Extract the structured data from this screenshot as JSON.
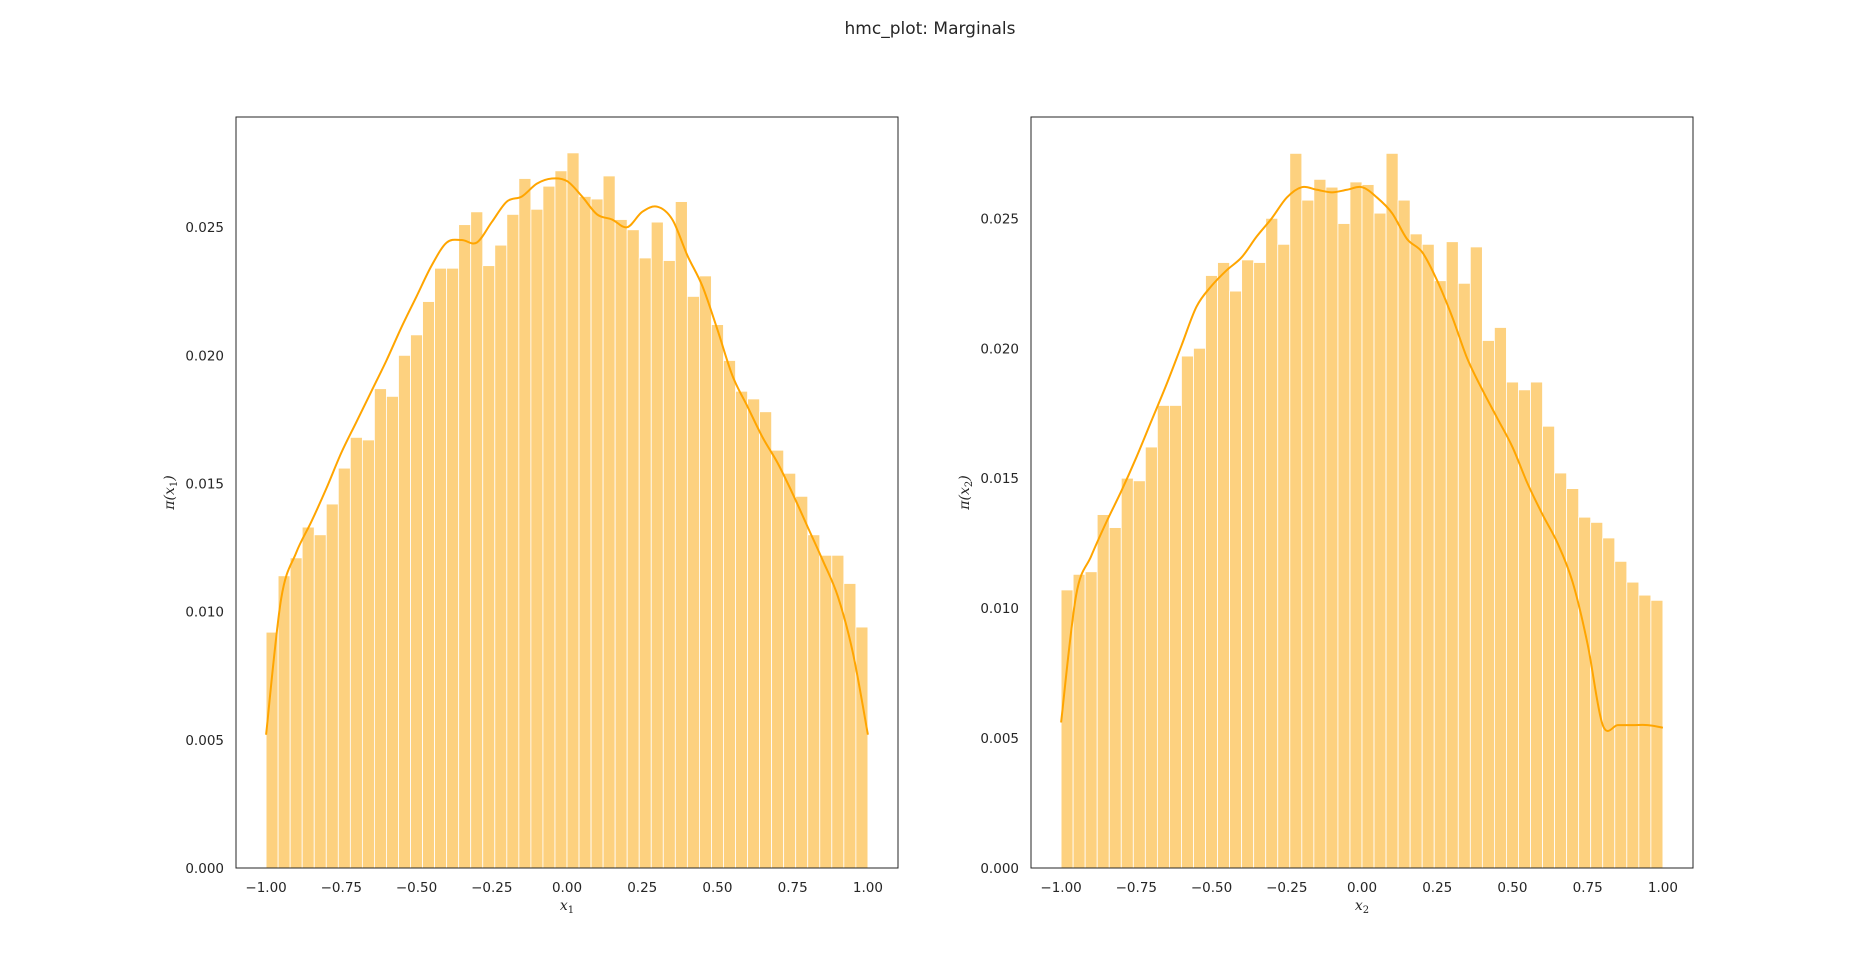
{
  "figure": {
    "title": "hmc_plot: Marginals",
    "bar_color": "#fdd17f",
    "bar_edge_color": "#ffffff",
    "kde_color": "#ffa500",
    "frame_color": "#262626"
  },
  "chart_data": [
    {
      "type": "bar",
      "panel": "left",
      "xlabel": "x",
      "xlabel_sub": "1",
      "ylabel_func": "π(x",
      "ylabel_sub": "1",
      "ylabel_close": ")",
      "xlim": [
        -1.1,
        1.1
      ],
      "ylim": [
        0,
        0.0293
      ],
      "xticks": [
        -1.0,
        -0.75,
        -0.5,
        -0.25,
        0.0,
        0.25,
        0.5,
        0.75,
        1.0
      ],
      "xtick_labels": [
        "−1.00",
        "−0.75",
        "−0.50",
        "−0.25",
        "0.00",
        "0.25",
        "0.50",
        "0.75",
        "1.00"
      ],
      "yticks": [
        0.0,
        0.005,
        0.01,
        0.015,
        0.02,
        0.025
      ],
      "ytick_labels": [
        "0.000",
        "0.005",
        "0.010",
        "0.015",
        "0.020",
        "0.025"
      ],
      "bin_range": [
        -1.0,
        1.0
      ],
      "values": [
        0.0092,
        0.0114,
        0.0121,
        0.0133,
        0.013,
        0.0142,
        0.0156,
        0.0168,
        0.0167,
        0.0187,
        0.0184,
        0.02,
        0.0208,
        0.0221,
        0.0234,
        0.0234,
        0.0251,
        0.0256,
        0.0235,
        0.0243,
        0.0255,
        0.0269,
        0.0257,
        0.0266,
        0.0272,
        0.0279,
        0.0262,
        0.0261,
        0.027,
        0.0253,
        0.0249,
        0.0238,
        0.0252,
        0.0237,
        0.026,
        0.0223,
        0.0231,
        0.0212,
        0.0198,
        0.0186,
        0.0183,
        0.0178,
        0.0163,
        0.0154,
        0.0145,
        0.013,
        0.0122,
        0.0122,
        0.0111,
        0.0094
      ],
      "kde": {
        "x": [
          -1.0,
          -0.95,
          -0.9,
          -0.85,
          -0.8,
          -0.75,
          -0.7,
          -0.65,
          -0.6,
          -0.55,
          -0.5,
          -0.45,
          -0.4,
          -0.35,
          -0.3,
          -0.25,
          -0.2,
          -0.15,
          -0.1,
          -0.05,
          0.0,
          0.05,
          0.1,
          0.15,
          0.2,
          0.25,
          0.3,
          0.35,
          0.4,
          0.45,
          0.5,
          0.55,
          0.6,
          0.65,
          0.7,
          0.75,
          0.8,
          0.85,
          0.9,
          0.95,
          1.0
        ],
        "y": [
          0.0052,
          0.0105,
          0.0123,
          0.0135,
          0.0148,
          0.0162,
          0.0174,
          0.0186,
          0.0198,
          0.0211,
          0.0223,
          0.0235,
          0.0244,
          0.0245,
          0.0244,
          0.0252,
          0.026,
          0.0262,
          0.0267,
          0.0269,
          0.0268,
          0.0262,
          0.0255,
          0.0253,
          0.025,
          0.0256,
          0.0258,
          0.0253,
          0.0239,
          0.0227,
          0.021,
          0.0192,
          0.018,
          0.0168,
          0.0158,
          0.0146,
          0.0133,
          0.012,
          0.0106,
          0.0084,
          0.0052
        ]
      }
    },
    {
      "type": "bar",
      "panel": "right",
      "xlabel": "x",
      "xlabel_sub": "2",
      "ylabel_func": "π(x",
      "ylabel_sub": "2",
      "ylabel_close": ")",
      "xlim": [
        -1.1,
        1.1
      ],
      "ylim": [
        0,
        0.0289
      ],
      "xticks": [
        -1.0,
        -0.75,
        -0.5,
        -0.25,
        0.0,
        0.25,
        0.5,
        0.75,
        1.0
      ],
      "xtick_labels": [
        "−1.00",
        "−0.75",
        "−0.50",
        "−0.25",
        "0.00",
        "0.25",
        "0.50",
        "0.75",
        "1.00"
      ],
      "yticks": [
        0.0,
        0.005,
        0.01,
        0.015,
        0.02,
        0.025
      ],
      "ytick_labels": [
        "0.000",
        "0.005",
        "0.010",
        "0.015",
        "0.020",
        "0.025"
      ],
      "bin_range": [
        -1.0,
        1.0
      ],
      "values": [
        0.0107,
        0.0113,
        0.0114,
        0.0136,
        0.0131,
        0.015,
        0.0149,
        0.0162,
        0.0178,
        0.0178,
        0.0197,
        0.02,
        0.0228,
        0.0233,
        0.0222,
        0.0234,
        0.0233,
        0.025,
        0.024,
        0.0275,
        0.0257,
        0.0265,
        0.0262,
        0.0248,
        0.0264,
        0.0263,
        0.0252,
        0.0275,
        0.0257,
        0.0244,
        0.024,
        0.0226,
        0.0241,
        0.0225,
        0.0239,
        0.0203,
        0.0208,
        0.0187,
        0.0184,
        0.0187,
        0.017,
        0.0152,
        0.0146,
        0.0135,
        0.0133,
        0.0127,
        0.0118,
        0.011,
        0.0105,
        0.0103
      ],
      "kde": {
        "x": [
          -1.0,
          -0.95,
          -0.9,
          -0.85,
          -0.8,
          -0.75,
          -0.7,
          -0.65,
          -0.6,
          -0.55,
          -0.5,
          -0.45,
          -0.4,
          -0.35,
          -0.3,
          -0.25,
          -0.2,
          -0.15,
          -0.1,
          -0.05,
          0.0,
          0.05,
          0.1,
          0.15,
          0.2,
          0.25,
          0.3,
          0.35,
          0.4,
          0.45,
          0.5,
          0.55,
          0.6,
          0.65,
          0.7,
          0.75,
          0.8,
          0.85,
          0.9,
          0.95,
          1.0
        ],
        "y": [
          0.0056,
          0.0105,
          0.012,
          0.0133,
          0.0145,
          0.0158,
          0.0172,
          0.0186,
          0.0201,
          0.0216,
          0.0224,
          0.023,
          0.0235,
          0.0243,
          0.025,
          0.0258,
          0.0262,
          0.0261,
          0.026,
          0.0261,
          0.0262,
          0.0258,
          0.0252,
          0.0242,
          0.0237,
          0.0226,
          0.0212,
          0.0196,
          0.0184,
          0.0173,
          0.0162,
          0.0148,
          0.0136,
          0.0125,
          0.011,
          0.0086,
          0.0055,
          0.0055,
          0.0055,
          0.0055,
          0.0054
        ]
      }
    }
  ]
}
